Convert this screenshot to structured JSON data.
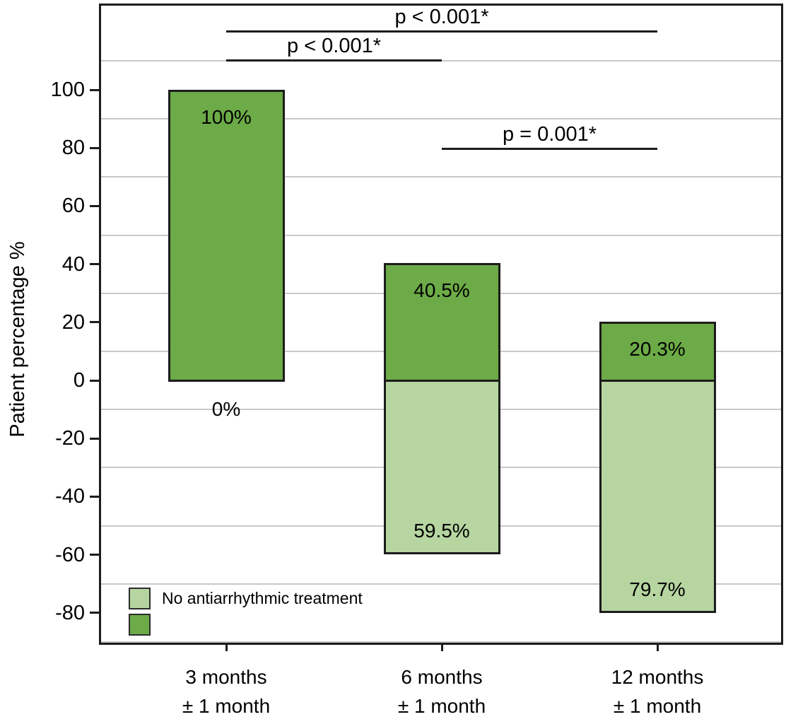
{
  "chart_data": {
    "type": "bar",
    "stacked": true,
    "orientation": "vertical",
    "title": "",
    "ylabel": "Patient percentage %",
    "xlabel": "",
    "ylim": [
      -91,
      130
    ],
    "yticks": [
      100,
      80,
      60,
      40,
      20,
      0,
      -20,
      -40,
      -60,
      -80
    ],
    "gridlines": [
      110,
      90,
      70,
      50,
      30,
      10,
      -10,
      -30,
      -50,
      -70,
      -90
    ],
    "grid": "on",
    "categories": [
      {
        "line1": "3 months",
        "line2": "± 1 month"
      },
      {
        "line1": "6 months",
        "line2": "± 1 month"
      },
      {
        "line1": "12 months",
        "line2": "± 1 month"
      }
    ],
    "series": [
      {
        "position": "above-axis",
        "legend_label": "",
        "color": "#6CAB47",
        "values": [
          100,
          40.5,
          20.3
        ],
        "labels": [
          "100%",
          "40.5%",
          "20.3%"
        ]
      },
      {
        "position": "below-axis",
        "legend_label": "No antiarrhythmic treatment",
        "color": "#B6D5A0",
        "values": [
          0,
          -59.5,
          -79.7
        ],
        "labels": [
          "0%",
          "59.5%",
          "79.7%"
        ]
      }
    ],
    "annotations": [
      {
        "text": "p < 0.001*",
        "from_category": 0,
        "to_category": 2
      },
      {
        "text": "p < 0.001*",
        "from_category": 0,
        "to_category": 1
      },
      {
        "text": "p = 0.001*",
        "from_category": 1,
        "to_category": 2
      }
    ],
    "legend": {
      "position": "inside-bottom-left",
      "items": [
        {
          "label": "No antiarrhythmic treatment",
          "color": "#B6D5A0"
        },
        {
          "label": "",
          "color": "#6CAB47"
        }
      ]
    },
    "colors": {
      "grid": "#c9c9c9",
      "frame": "#1c1c1c",
      "bar_border": "#1c1c1c",
      "text": "#000000",
      "background": "#ffffff"
    }
  }
}
